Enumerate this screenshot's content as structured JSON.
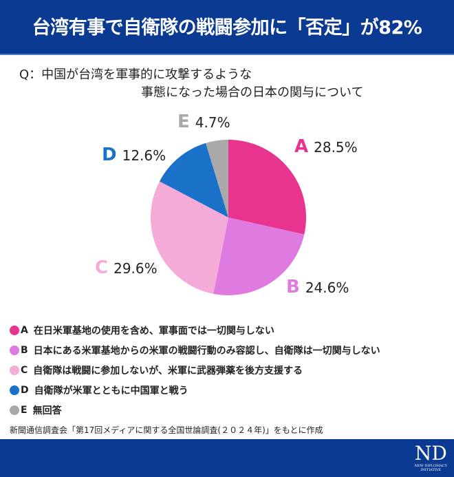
{
  "header": {
    "title": "台湾有事で自衛隊の戦闘参加に「否定」が82%"
  },
  "question": {
    "line1": "Q：中国が台湾を軍事的に攻撃するような",
    "line2": "事態になった場合の日本の関与について"
  },
  "chart_data": {
    "type": "pie",
    "title": "台湾有事で自衛隊の戦闘参加に「否定」が82%",
    "categories": [
      "A",
      "B",
      "C",
      "D",
      "E"
    ],
    "values": [
      28.5,
      24.6,
      29.6,
      12.6,
      4.7
    ],
    "value_labels": [
      "28.5%",
      "24.6%",
      "29.6%",
      "12.6%",
      "4.7%"
    ],
    "colors": [
      "#e8348f",
      "#de7ae0",
      "#f5abd8",
      "#1a72c8",
      "#a9a9a9"
    ],
    "legend": [
      "在日米軍基地の使用を含め、軍事面では一切関与しない",
      "日本にある米軍基地からの米軍の戦闘行動のみ容認し、自衛隊は一切関与しない",
      "自衛隊は戦闘に参加しないが、米軍に武器弾薬を後方支援する",
      "自衛隊が米軍とともに中国軍と戦う",
      "無回答"
    ],
    "legend_placement": "bottom"
  },
  "source": "新聞通信調査会「第17回メディアに関する全国世論調査(２０２４年)」をもとに作成",
  "footer": {
    "logo": "ND",
    "logo_sub1": "NEW DIPLOMACY",
    "logo_sub2": "INITIATIVE"
  }
}
